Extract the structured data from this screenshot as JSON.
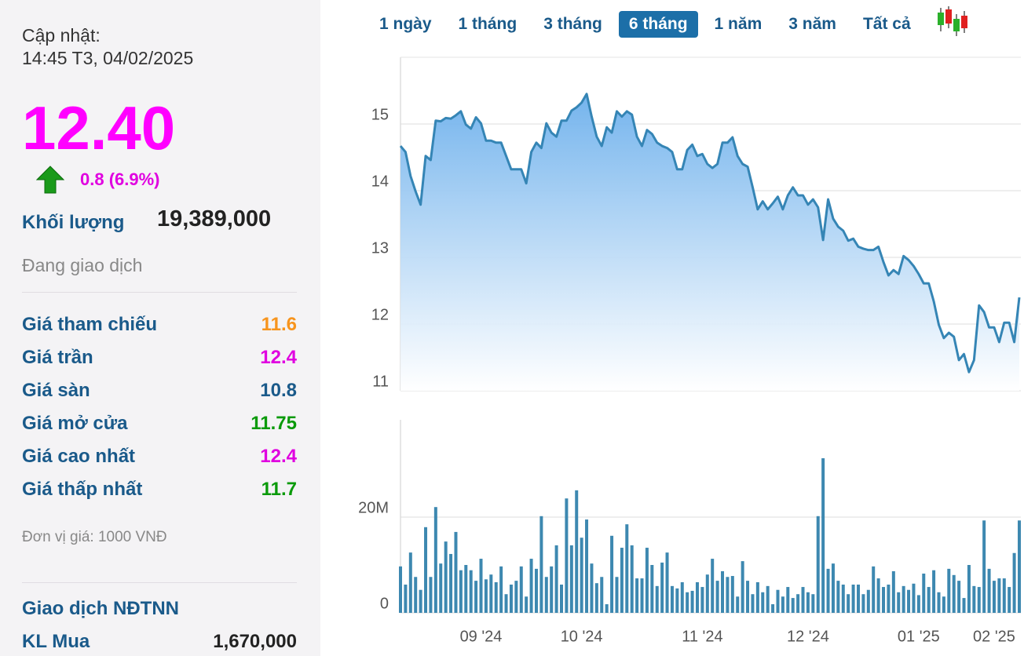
{
  "quote": {
    "update_label": "Cập nhật:",
    "update_time": "14:45 T3, 04/02/2025",
    "price": "12.40",
    "change": "0.8 (6.9%)",
    "volume_label": "Khối lượng",
    "volume": "19,389,000",
    "status": "Đang giao dịch",
    "stats": [
      {
        "label": "Giá tham chiếu",
        "value": "11.6",
        "color": "#f7941d"
      },
      {
        "label": "Giá trần",
        "value": "12.4",
        "color": "#e000e0"
      },
      {
        "label": "Giá sàn",
        "value": "10.8",
        "color": "#1a5a8a"
      },
      {
        "label": "Giá mở cửa",
        "value": "11.75",
        "color": "#0a9a0a"
      },
      {
        "label": "Giá cao nhất",
        "value": "12.4",
        "color": "#e000e0"
      },
      {
        "label": "Giá thấp nhất",
        "value": "11.7",
        "color": "#0a9a0a"
      }
    ],
    "unit_note": "Đơn vị giá: 1000 VNĐ",
    "foreign_title": "Giao dịch NĐTNN",
    "buy_label": "KL Mua",
    "buy_value": "1,670,000"
  },
  "tabs": {
    "items": [
      "1 ngày",
      "1 tháng",
      "3 tháng",
      "6 tháng",
      "1 năm",
      "3 năm",
      "Tất cả"
    ],
    "active": 3
  },
  "chart_data": [
    {
      "type": "area",
      "color": "#3585b5",
      "ylim": [
        11,
        16
      ],
      "yticks": [
        11,
        12,
        13,
        14,
        15
      ],
      "grid": true,
      "values": [
        14.67,
        14.58,
        14.22,
        13.99,
        13.79,
        14.52,
        14.46,
        15.05,
        15.04,
        15.09,
        15.08,
        15.13,
        15.19,
        14.99,
        14.93,
        15.1,
        15.01,
        14.75,
        14.75,
        14.72,
        14.72,
        14.52,
        14.32,
        14.32,
        14.32,
        14.11,
        14.58,
        14.72,
        14.64,
        15.01,
        14.87,
        14.81,
        15.05,
        15.05,
        15.2,
        15.25,
        15.32,
        15.45,
        15.11,
        14.81,
        14.67,
        14.95,
        14.87,
        15.19,
        15.11,
        15.19,
        15.14,
        14.81,
        14.67,
        14.91,
        14.85,
        14.72,
        14.67,
        14.64,
        14.58,
        14.32,
        14.32,
        14.61,
        14.69,
        14.52,
        14.55,
        14.4,
        14.34,
        14.4,
        14.72,
        14.72,
        14.8,
        14.52,
        14.4,
        14.36,
        14.05,
        13.72,
        13.84,
        13.72,
        13.81,
        13.91,
        13.72,
        13.93,
        14.05,
        13.93,
        13.93,
        13.79,
        13.87,
        13.75,
        13.26,
        13.87,
        13.58,
        13.46,
        13.4,
        13.25,
        13.28,
        13.16,
        13.13,
        13.11,
        13.11,
        13.16,
        12.93,
        12.73,
        12.81,
        12.75,
        13.02,
        12.96,
        12.87,
        12.75,
        12.61,
        12.61,
        12.34,
        11.99,
        11.79,
        11.87,
        11.81,
        11.46,
        11.55,
        11.28,
        11.46,
        12.28,
        12.18,
        11.95,
        11.95,
        11.73,
        12.02,
        12.02,
        11.73,
        12.4
      ]
    },
    {
      "type": "bar",
      "color": "#3d88b0",
      "ylim": [
        0,
        40000000
      ],
      "yticks": [
        0,
        {
          "value": 20000000,
          "label": "20M"
        }
      ],
      "grid": true,
      "categories": [
        null,
        null,
        null,
        null,
        null,
        null,
        null,
        null,
        null,
        null,
        null,
        null,
        null,
        null,
        null,
        null,
        "09 '24",
        null,
        null,
        null,
        null,
        null,
        null,
        null,
        null,
        null,
        null,
        null,
        null,
        null,
        null,
        null,
        null,
        null,
        null,
        null,
        "10 '24",
        null,
        null,
        null,
        null,
        null,
        null,
        null,
        null,
        null,
        null,
        null,
        null,
        null,
        null,
        null,
        null,
        null,
        null,
        null,
        null,
        null,
        null,
        null,
        "11 '24",
        null,
        null,
        null,
        null,
        null,
        null,
        null,
        null,
        null,
        null,
        null,
        null,
        null,
        null,
        null,
        null,
        null,
        null,
        null,
        null,
        "12 '24",
        null,
        null,
        null,
        null,
        null,
        null,
        null,
        null,
        null,
        null,
        null,
        null,
        null,
        null,
        null,
        null,
        null,
        null,
        null,
        null,
        null,
        "01 '25",
        null,
        null,
        null,
        null,
        null,
        null,
        null,
        null,
        null,
        null,
        null,
        null,
        null,
        null,
        "02 '25",
        null,
        null,
        null,
        null,
        null
      ],
      "values": [
        9700000.0,
        5900000.0,
        12600000.0,
        7500000.0,
        4800000.0,
        17900000.0,
        7500000.0,
        22100000.0,
        10300000.0,
        14900000.0,
        12300000.0,
        16900000.0,
        8900000.0,
        10000000.0,
        8900000.0,
        6700000.0,
        11300000.0,
        7000000.0,
        8000000.0,
        6400000.0,
        9700000.0,
        3900000.0,
        5900000.0,
        6700000.0,
        9700000.0,
        3400000.0,
        11300000.0,
        9200000.0,
        20200000.0,
        7500000.0,
        9700000.0,
        14100000.0,
        5900000.0,
        23900000.0,
        14100000.0,
        25600000.0,
        15700000.0,
        19500000.0,
        10300000.0,
        6200000.0,
        7500000.0,
        1800000.0,
        16100000.0,
        7500000.0,
        13600000.0,
        18500000.0,
        14100000.0,
        7200000.0,
        7200000.0,
        13600000.0,
        10000000.0,
        5600000.0,
        10500000.0,
        12600000.0,
        5600000.0,
        5100000.0,
        6400000.0,
        4300000.0,
        4600000.0,
        6400000.0,
        5400000.0,
        8000000.0,
        11300000.0,
        6700000.0,
        8700000.0,
        7500000.0,
        7700000.0,
        3400000.0,
        10800000.0,
        6700000.0,
        3900000.0,
        6400000.0,
        4300000.0,
        5600000.0,
        1800000.0,
        4800000.0,
        3400000.0,
        5400000.0,
        3100000.0,
        3900000.0,
        5400000.0,
        4300000.0,
        3900000.0,
        20200000.0,
        32300000.0,
        9200000.0,
        10300000.0,
        6700000.0,
        5900000.0,
        3900000.0,
        5900000.0,
        5900000.0,
        3900000.0,
        4800000.0,
        9700000.0,
        7200000.0,
        5400000.0,
        5900000.0,
        8700000.0,
        4300000.0,
        5600000.0,
        4800000.0,
        6100000.0,
        3700000.0,
        8200000.0,
        5400000.0,
        8900000.0,
        4300000.0,
        3400000.0,
        9200000.0,
        7900000.0,
        6700000.0,
        3100000.0,
        10000000.0,
        5600000.0,
        5400000.0,
        19300000.0,
        9200000.0,
        6700000.0,
        7200000.0,
        7200000.0,
        5400000.0,
        12500000.0,
        19300000.0
      ]
    }
  ]
}
